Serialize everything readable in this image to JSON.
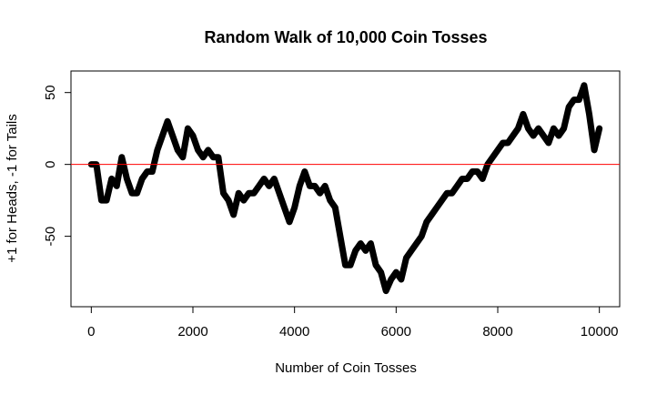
{
  "chart_data": {
    "type": "line",
    "title": "Random Walk of 10,000 Coin Tosses",
    "x_label": "Number of Coin Tosses",
    "y_label": "+1 for Heads, -1 for Tails",
    "x": [
      0,
      100,
      200,
      300,
      400,
      500,
      600,
      700,
      800,
      900,
      1000,
      1100,
      1200,
      1300,
      1400,
      1500,
      1600,
      1700,
      1800,
      1900,
      2000,
      2100,
      2200,
      2300,
      2400,
      2500,
      2600,
      2700,
      2800,
      2900,
      3000,
      3100,
      3200,
      3300,
      3400,
      3500,
      3600,
      3700,
      3800,
      3900,
      4000,
      4100,
      4200,
      4300,
      4400,
      4500,
      4600,
      4700,
      4800,
      4900,
      5000,
      5100,
      5200,
      5300,
      5400,
      5500,
      5600,
      5700,
      5800,
      5900,
      6000,
      6100,
      6200,
      6300,
      6400,
      6500,
      6600,
      6700,
      6800,
      6900,
      7000,
      7100,
      7200,
      7300,
      7400,
      7500,
      7600,
      7700,
      7800,
      7900,
      8000,
      8100,
      8200,
      8300,
      8400,
      8500,
      8600,
      8700,
      8800,
      8900,
      9000,
      9100,
      9200,
      9300,
      9400,
      9500,
      9600,
      9700,
      9800,
      9900,
      10000
    ],
    "series": [
      {
        "color": "#000000",
        "values": [
          0,
          0,
          -25,
          -25,
          -10,
          -15,
          5,
          -10,
          -20,
          -20,
          -10,
          -5,
          -5,
          10,
          20,
          30,
          20,
          10,
          5,
          25,
          20,
          10,
          5,
          10,
          5,
          5,
          -20,
          -25,
          -35,
          -20,
          -25,
          -20,
          -20,
          -15,
          -10,
          -15,
          -10,
          -20,
          -30,
          -40,
          -30,
          -15,
          -5,
          -15,
          -15,
          -20,
          -15,
          -25,
          -30,
          -50,
          -70,
          -70,
          -60,
          -55,
          -60,
          -55,
          -70,
          -75,
          -88,
          -80,
          -75,
          -80,
          -65,
          -60,
          -55,
          -50,
          -40,
          -35,
          -30,
          -25,
          -20,
          -20,
          -15,
          -10,
          -10,
          -5,
          -5,
          -10,
          0,
          5,
          10,
          15,
          15,
          20,
          25,
          35,
          25,
          20,
          25,
          20,
          15,
          25,
          20,
          25,
          40,
          45,
          45,
          55,
          35,
          10,
          25
        ]
      }
    ],
    "reference_line": 0,
    "reference_color": "#ff0000",
    "xlim": [
      -400,
      10400
    ],
    "ylim": [
      -99,
      65
    ],
    "xticks": [
      0,
      2000,
      4000,
      6000,
      8000,
      10000
    ],
    "yticks": [
      -50,
      0,
      50
    ]
  }
}
